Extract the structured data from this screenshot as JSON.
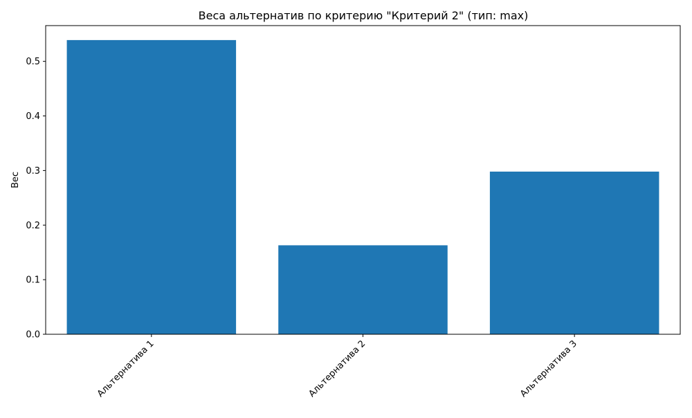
{
  "chart_data": {
    "type": "bar",
    "title": "Веса альтернатив по критерию \"Критерий 2\" (тип: max)",
    "xlabel": "",
    "ylabel": "Вес",
    "categories": [
      "Альтернатива 1",
      "Альтернатива 2",
      "Альтернатива 3"
    ],
    "values": [
      0.539,
      0.163,
      0.298
    ],
    "ylim": [
      0,
      0.5655
    ],
    "yticks": [
      0.0,
      0.1,
      0.2,
      0.3,
      0.4,
      0.5
    ],
    "ytick_labels": [
      "0.0",
      "0.1",
      "0.2",
      "0.3",
      "0.4",
      "0.5"
    ],
    "bar_color": "#1f77b4",
    "grid": false,
    "legend": "none"
  }
}
